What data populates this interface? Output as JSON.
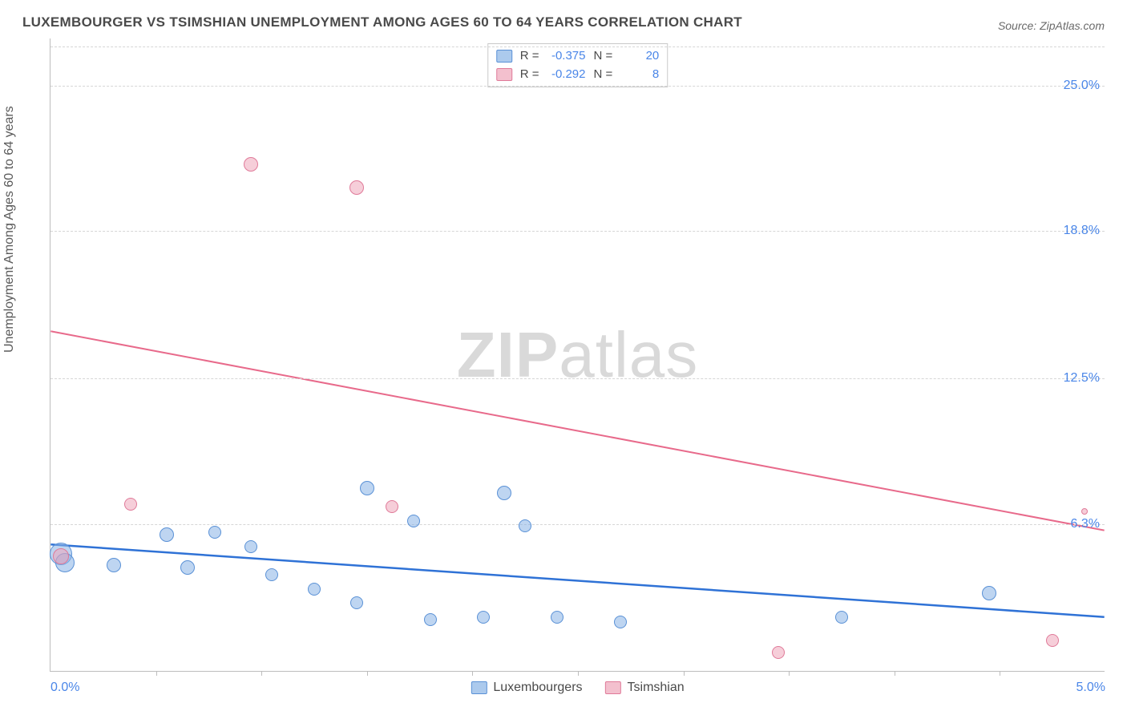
{
  "title": "LUXEMBOURGER VS TSIMSHIAN UNEMPLOYMENT AMONG AGES 60 TO 64 YEARS CORRELATION CHART",
  "source": "Source: ZipAtlas.com",
  "y_axis_label": "Unemployment Among Ages 60 to 64 years",
  "watermark": {
    "bold": "ZIP",
    "rest": "atlas"
  },
  "chart": {
    "type": "scatter",
    "background_color": "#ffffff",
    "grid_color": "#d6d6d6",
    "axis_color": "#bdbdbd",
    "tick_color": "#4a86e8",
    "text_color": "#5a5a5a",
    "x_range": [
      0.0,
      5.0
    ],
    "y_range": [
      0.0,
      27.0
    ],
    "y_ticks": [
      {
        "value": 6.3,
        "label": "6.3%"
      },
      {
        "value": 12.5,
        "label": "12.5%"
      },
      {
        "value": 18.8,
        "label": "18.8%"
      },
      {
        "value": 25.0,
        "label": "25.0%"
      }
    ],
    "x_ticks_minor_step": 0.5,
    "x_tick_labels": [
      {
        "value": 0.0,
        "label": "0.0%"
      },
      {
        "value": 5.0,
        "label": "5.0%"
      }
    ],
    "series": [
      {
        "name": "Luxembourgers",
        "color_fill": "#89b3e6",
        "color_stroke": "#5a91d6",
        "r_value": "-0.375",
        "n_value": "20",
        "trend": {
          "x1": 0.0,
          "y1": 5.4,
          "x2": 5.0,
          "y2": 2.3,
          "color": "#2f72d6",
          "width": 2.5
        },
        "points": [
          {
            "x": 0.05,
            "y": 5.0,
            "r": 14
          },
          {
            "x": 0.07,
            "y": 4.6,
            "r": 12
          },
          {
            "x": 0.3,
            "y": 4.5,
            "r": 9
          },
          {
            "x": 0.55,
            "y": 5.8,
            "r": 9
          },
          {
            "x": 0.65,
            "y": 4.4,
            "r": 9
          },
          {
            "x": 0.78,
            "y": 5.9,
            "r": 8
          },
          {
            "x": 0.95,
            "y": 5.3,
            "r": 8
          },
          {
            "x": 1.05,
            "y": 4.1,
            "r": 8
          },
          {
            "x": 1.25,
            "y": 3.5,
            "r": 8
          },
          {
            "x": 1.45,
            "y": 2.9,
            "r": 8
          },
          {
            "x": 1.5,
            "y": 7.8,
            "r": 9
          },
          {
            "x": 1.72,
            "y": 6.4,
            "r": 8
          },
          {
            "x": 1.8,
            "y": 2.2,
            "r": 8
          },
          {
            "x": 2.05,
            "y": 2.3,
            "r": 8
          },
          {
            "x": 2.15,
            "y": 7.6,
            "r": 9
          },
          {
            "x": 2.25,
            "y": 6.2,
            "r": 8
          },
          {
            "x": 2.4,
            "y": 2.3,
            "r": 8
          },
          {
            "x": 2.7,
            "y": 2.1,
            "r": 8
          },
          {
            "x": 3.75,
            "y": 2.3,
            "r": 8
          },
          {
            "x": 4.45,
            "y": 3.3,
            "r": 9
          }
        ]
      },
      {
        "name": "Tsimshian",
        "color_fill": "#eea5b9",
        "color_stroke": "#e07a99",
        "r_value": "-0.292",
        "n_value": "8",
        "trend": {
          "x1": 0.0,
          "y1": 14.5,
          "x2": 5.0,
          "y2": 6.0,
          "color": "#e86a8b",
          "width": 2
        },
        "points": [
          {
            "x": 0.05,
            "y": 4.9,
            "r": 10
          },
          {
            "x": 0.38,
            "y": 7.1,
            "r": 8
          },
          {
            "x": 0.95,
            "y": 21.6,
            "r": 9
          },
          {
            "x": 1.45,
            "y": 20.6,
            "r": 9
          },
          {
            "x": 1.62,
            "y": 7.0,
            "r": 8
          },
          {
            "x": 3.45,
            "y": 0.8,
            "r": 8
          },
          {
            "x": 4.75,
            "y": 1.3,
            "r": 8
          },
          {
            "x": 4.9,
            "y": 6.8,
            "r": 4
          }
        ]
      }
    ],
    "legend_top_labels": {
      "r": "R =",
      "n": "N ="
    },
    "legend_bottom": [
      {
        "swatch": "blue",
        "label": "Luxembourgers"
      },
      {
        "swatch": "pink",
        "label": "Tsimshian"
      }
    ]
  }
}
